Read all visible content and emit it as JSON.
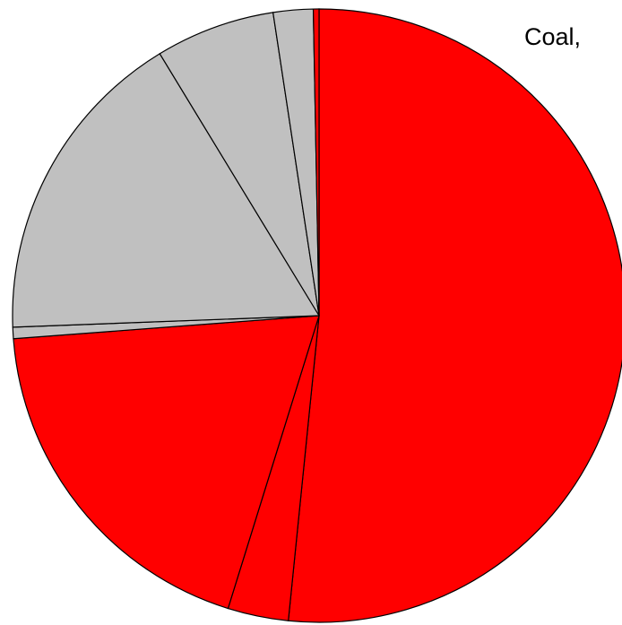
{
  "chart_data": {
    "type": "pie",
    "start_angle_deg": 90,
    "direction": "clockwise",
    "colors": {
      "highlight": "#ff0000",
      "other": "#c0c0c0"
    },
    "slices": [
      {
        "value": 51.6,
        "color": "#ff0000"
      },
      {
        "value": 3.2,
        "color": "#ff0000"
      },
      {
        "value": 19.0,
        "color": "#ff0000"
      },
      {
        "value": 0.6,
        "color": "#c0c0c0"
      },
      {
        "value": 16.9,
        "color": "#c0c0c0"
      },
      {
        "value": 6.3,
        "color": "#c0c0c0"
      },
      {
        "value": 2.1,
        "color": "#c0c0c0"
      },
      {
        "value": 0.3,
        "color": "#ff0000"
      }
    ],
    "annotations": [
      {
        "text": "Coal,"
      }
    ]
  }
}
